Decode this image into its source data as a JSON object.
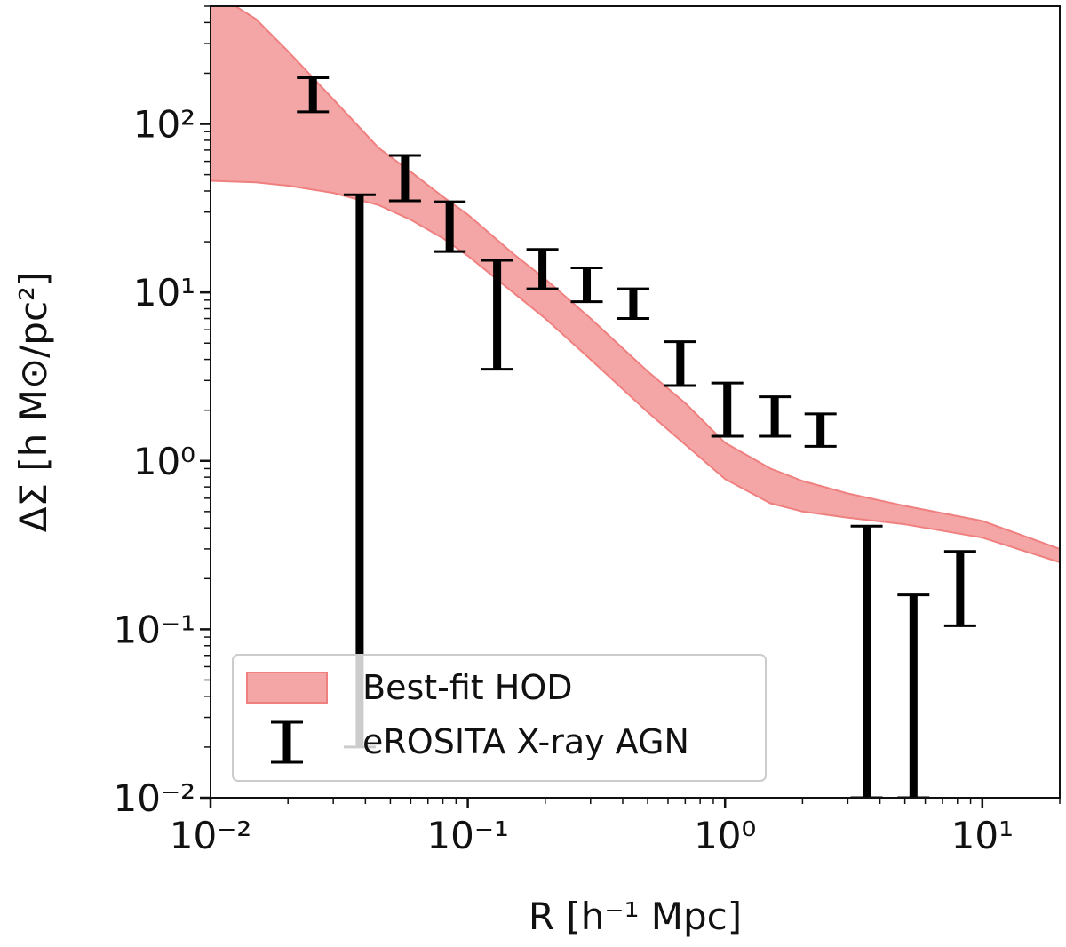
{
  "chart_data": {
    "type": "scatter",
    "xlabel": "R [h⁻¹ Mpc]",
    "ylabel": "ΔΣ [h M⊙/pc²]",
    "xscale": "log",
    "yscale": "log",
    "xlim": [
      0.01,
      20
    ],
    "ylim": [
      0.01,
      500
    ],
    "x_ticks": [
      {
        "value": 0.01,
        "label": "10⁻²"
      },
      {
        "value": 0.1,
        "label": "10⁻¹"
      },
      {
        "value": 1,
        "label": "10⁰"
      },
      {
        "value": 10,
        "label": "10¹"
      }
    ],
    "y_ticks": [
      {
        "value": 0.01,
        "label": "10⁻²"
      },
      {
        "value": 0.1,
        "label": "10⁻¹"
      },
      {
        "value": 1,
        "label": "10⁰"
      },
      {
        "value": 10,
        "label": "10¹"
      },
      {
        "value": 100,
        "label": "10²"
      }
    ],
    "grid": false,
    "legend_position": "lower-left",
    "series": [
      {
        "name": "Best-fit HOD",
        "kind": "band",
        "color": "#f4a6a6",
        "edge_color": "#f08080",
        "x": [
          0.01,
          0.015,
          0.02,
          0.03,
          0.045,
          0.06,
          0.08,
          0.1,
          0.15,
          0.2,
          0.3,
          0.5,
          0.7,
          1.0,
          1.5,
          2.0,
          3.0,
          5.0,
          10.0,
          20.0
        ],
        "lower": [
          46,
          45,
          43,
          39,
          33,
          27,
          21,
          16.5,
          10,
          7,
          4,
          1.95,
          1.25,
          0.78,
          0.56,
          0.5,
          0.46,
          0.42,
          0.35,
          0.25
        ],
        "upper": [
          620,
          420,
          270,
          140,
          72,
          52,
          37,
          29,
          17,
          12,
          7,
          3.4,
          2.2,
          1.28,
          0.9,
          0.76,
          0.64,
          0.54,
          0.44,
          0.3
        ]
      },
      {
        "name": "eROSITA X-ray AGN",
        "kind": "errorbar",
        "color": "#000000",
        "points": [
          {
            "x": 0.025,
            "low": 118,
            "high": 188
          },
          {
            "x": 0.038,
            "low": 0.02,
            "high": 38
          },
          {
            "x": 0.057,
            "low": 35,
            "high": 65
          },
          {
            "x": 0.085,
            "low": 17.5,
            "high": 34.5
          },
          {
            "x": 0.13,
            "low": 3.5,
            "high": 15.5
          },
          {
            "x": 0.195,
            "low": 10.5,
            "high": 18
          },
          {
            "x": 0.29,
            "low": 8.8,
            "high": 14
          },
          {
            "x": 0.44,
            "low": 7.0,
            "high": 10.5
          },
          {
            "x": 0.67,
            "low": 2.8,
            "high": 5.1
          },
          {
            "x": 1.02,
            "low": 1.4,
            "high": 2.9
          },
          {
            "x": 1.56,
            "low": 1.4,
            "high": 2.4
          },
          {
            "x": 2.35,
            "low": 1.22,
            "high": 1.9
          },
          {
            "x": 3.55,
            "low": 0.01,
            "high": 0.41
          },
          {
            "x": 5.4,
            "low": 0.01,
            "high": 0.16
          },
          {
            "x": 8.2,
            "low": 0.105,
            "high": 0.29
          }
        ]
      }
    ]
  }
}
